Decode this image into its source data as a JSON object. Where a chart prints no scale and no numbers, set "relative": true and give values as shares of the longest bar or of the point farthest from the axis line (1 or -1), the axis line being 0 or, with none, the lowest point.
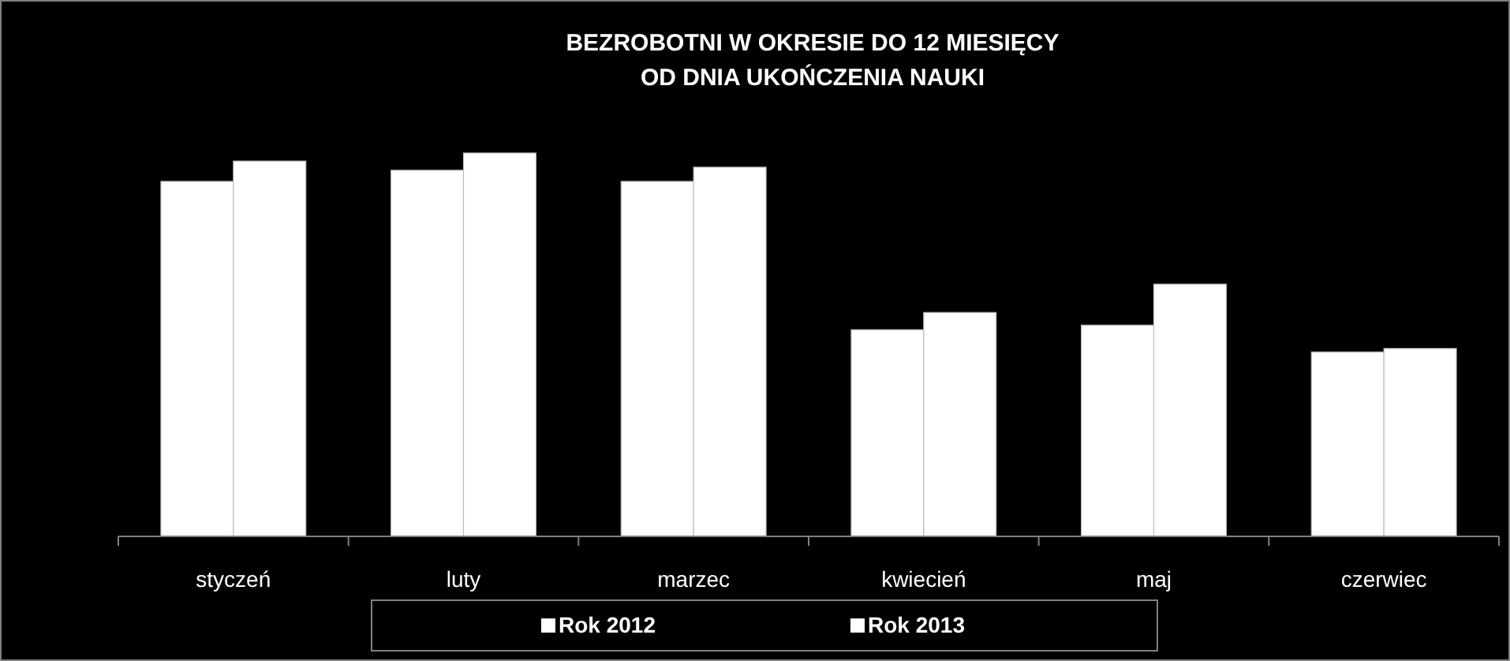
{
  "chart_data": {
    "type": "bar",
    "title": "BEZROBOTNI W OKRESIE DO 12 MIESIĘCY\nOD DNIA UKOŃCZENIA NAUKI",
    "relative": true,
    "categories": [
      "styczeń",
      "luty",
      "marzec",
      "kwiecień",
      "maj",
      "czerwiec"
    ],
    "series": [
      {
        "name": "Rok 2012",
        "color": "#ffffff",
        "values": [
          0.926,
          0.955,
          0.926,
          0.539,
          0.551,
          0.481
        ]
      },
      {
        "name": "Rok 2013",
        "color": "#ffffff",
        "values": [
          0.979,
          1,
          0.963,
          0.584,
          0.658,
          0.49
        ]
      }
    ],
    "legend": "bottom",
    "grid": false
  }
}
